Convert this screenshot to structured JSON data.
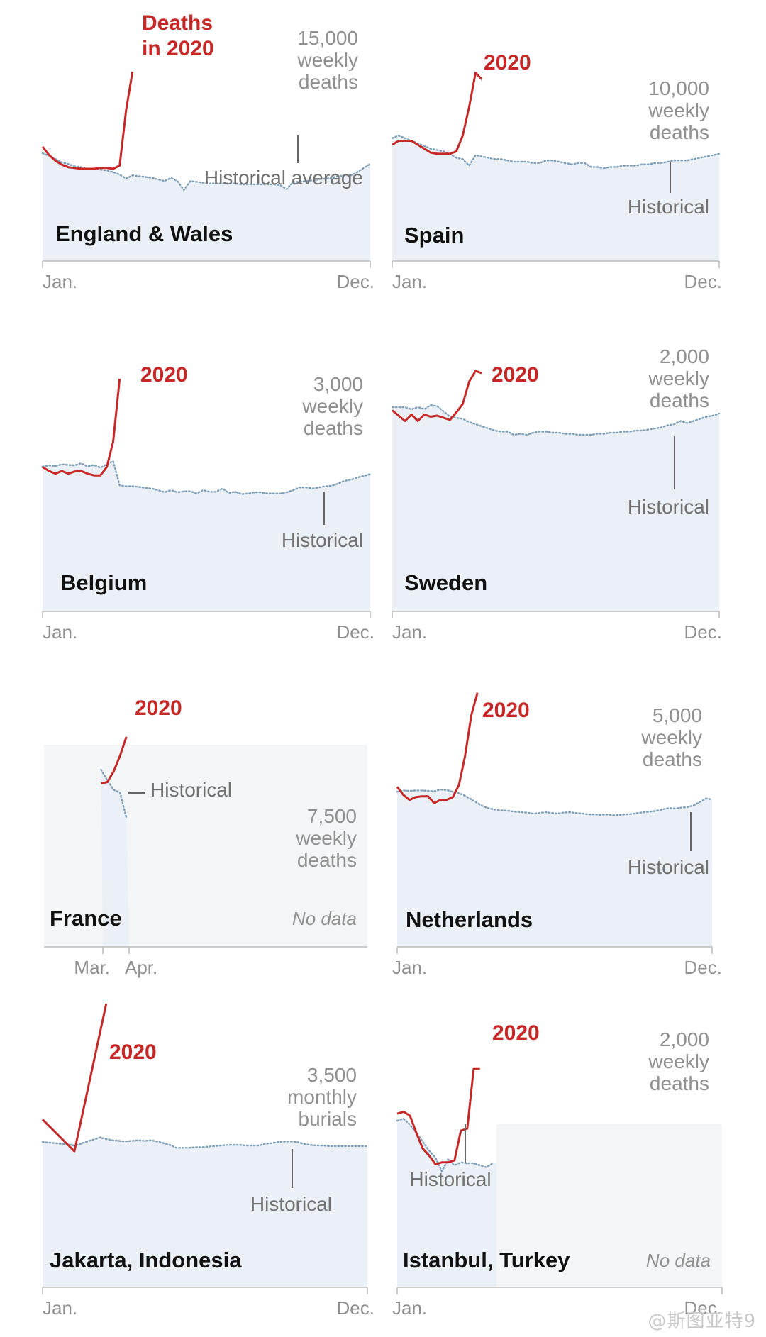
{
  "figure": {
    "watermark": "@斯图亚特9",
    "colors": {
      "deaths_2020": "#c62828",
      "historical": "#7f9fb6",
      "area_fill": "#eaf0f5",
      "no_data_fill": "#f4f5f6",
      "axis": "#bbbbbb",
      "label_grey": "#909090",
      "country_label": "#111111"
    }
  },
  "chart_data": [
    {
      "type": "line",
      "country": "England & Wales",
      "highlight_label": "Deaths\nin 2020",
      "y_label": "15,000\nweekly\ndeaths",
      "historical_label": "Historical average",
      "x_ticks": [
        "Jan.",
        "Dec."
      ],
      "x_range": [
        0,
        51
      ],
      "y_scale_value": 15000,
      "series": [
        {
          "name": "Deaths in 2020",
          "x": [
            0,
            1,
            2,
            3,
            4,
            5,
            6,
            7,
            8,
            9,
            10,
            11,
            12,
            13,
            14
          ],
          "y": [
            14000,
            13000,
            12300,
            11800,
            11500,
            11400,
            11300,
            11300,
            11300,
            11400,
            11400,
            11300,
            11700,
            18500,
            23200
          ]
        },
        {
          "name": "Historical average",
          "x": [
            0,
            1,
            2,
            3,
            4,
            5,
            6,
            7,
            8,
            9,
            10,
            11,
            12,
            13,
            14,
            15,
            16,
            17,
            18,
            19,
            20,
            21,
            22,
            23,
            24,
            25,
            26,
            27,
            28,
            29,
            30,
            31,
            32,
            33,
            34,
            35,
            36,
            37,
            38,
            39,
            40,
            41,
            42,
            43,
            44,
            45,
            46,
            47,
            48,
            49,
            50,
            51
          ],
          "y": [
            13200,
            12900,
            12500,
            12100,
            11900,
            11600,
            11500,
            11300,
            11300,
            11200,
            11100,
            10900,
            10600,
            10100,
            10500,
            10400,
            10300,
            10200,
            10000,
            9800,
            10200,
            9800,
            8700,
            9800,
            9700,
            9600,
            9500,
            9500,
            9500,
            9500,
            9500,
            9400,
            9400,
            9400,
            9400,
            9400,
            9400,
            9300,
            8800,
            9700,
            9700,
            9800,
            9900,
            10000,
            10100,
            10200,
            10400,
            10500,
            10500,
            10900,
            11400,
            11900
          ]
        }
      ]
    },
    {
      "type": "line",
      "country": "Spain",
      "highlight_label": "2020",
      "y_label": "10,000\nweekly\ndeaths",
      "historical_label": "Historical",
      "x_ticks": [
        "Jan.",
        "Dec."
      ],
      "x_range": [
        0,
        51
      ],
      "y_scale_value": 10000,
      "series": [
        {
          "name": "2020",
          "x": [
            0,
            1,
            2,
            3,
            4,
            5,
            6,
            7,
            8,
            9,
            10,
            11,
            12,
            13,
            14
          ],
          "y": [
            8900,
            9200,
            9200,
            9200,
            8900,
            8600,
            8300,
            8200,
            8200,
            8200,
            8400,
            9600,
            11800,
            14400,
            13900
          ]
        },
        {
          "name": "Historical",
          "x": [
            0,
            1,
            2,
            3,
            4,
            5,
            6,
            7,
            8,
            9,
            10,
            11,
            12,
            13,
            14,
            15,
            16,
            17,
            18,
            19,
            20,
            21,
            22,
            23,
            24,
            25,
            26,
            27,
            28,
            29,
            30,
            31,
            32,
            33,
            34,
            35,
            36,
            37,
            38,
            39,
            40,
            41,
            42,
            43,
            44,
            45,
            46,
            47,
            48,
            49,
            50,
            51
          ],
          "y": [
            9400,
            9600,
            9400,
            9200,
            9000,
            8800,
            8600,
            8500,
            8400,
            8200,
            7900,
            7800,
            7300,
            8100,
            8000,
            7900,
            7800,
            7800,
            7700,
            7600,
            7600,
            7600,
            7500,
            7500,
            7700,
            7700,
            7600,
            7500,
            7400,
            7500,
            7500,
            7200,
            7200,
            7100,
            7200,
            7200,
            7300,
            7300,
            7300,
            7400,
            7400,
            7500,
            7500,
            7600,
            7700,
            7700,
            7700,
            7800,
            7900,
            8000,
            8100,
            8200
          ]
        }
      ]
    },
    {
      "type": "line",
      "country": "Belgium",
      "highlight_label": "2020",
      "y_label": "3,000\nweekly\ndeaths",
      "historical_label": "Historical",
      "x_ticks": [
        "Jan.",
        "Dec."
      ],
      "x_range": [
        0,
        51
      ],
      "y_scale_value": 3000,
      "series": [
        {
          "name": "2020",
          "x": [
            0,
            1,
            2,
            3,
            4,
            5,
            6,
            7,
            8,
            9,
            10,
            11,
            12
          ],
          "y": [
            2630,
            2560,
            2510,
            2560,
            2510,
            2550,
            2560,
            2510,
            2480,
            2480,
            2630,
            3100,
            4240
          ]
        },
        {
          "name": "Historical",
          "x": [
            0,
            1,
            2,
            3,
            4,
            5,
            6,
            7,
            8,
            9,
            10,
            11,
            12,
            13,
            14,
            15,
            16,
            17,
            18,
            19,
            20,
            21,
            22,
            23,
            24,
            25,
            26,
            27,
            28,
            29,
            30,
            31,
            32,
            33,
            34,
            35,
            36,
            37,
            38,
            39,
            40,
            41,
            42,
            43,
            44,
            45,
            46,
            47,
            48,
            49,
            50,
            51
          ],
          "y": [
            2640,
            2660,
            2650,
            2680,
            2670,
            2660,
            2700,
            2640,
            2670,
            2620,
            2680,
            2740,
            2300,
            2280,
            2280,
            2270,
            2250,
            2240,
            2210,
            2170,
            2210,
            2170,
            2190,
            2190,
            2150,
            2210,
            2180,
            2180,
            2240,
            2160,
            2180,
            2140,
            2150,
            2170,
            2170,
            2150,
            2150,
            2150,
            2170,
            2210,
            2260,
            2260,
            2240,
            2260,
            2280,
            2290,
            2330,
            2380,
            2400,
            2440,
            2470,
            2500
          ]
        }
      ]
    },
    {
      "type": "line",
      "country": "Sweden",
      "highlight_label": "2020",
      "y_label": "2,000\nweekly\ndeaths",
      "historical_label": "Historical",
      "x_ticks": [
        "Jan.",
        "Dec."
      ],
      "x_range": [
        0,
        51
      ],
      "y_scale_value": 2000,
      "series": [
        {
          "name": "2020",
          "x": [
            0,
            1,
            2,
            3,
            4,
            5,
            6,
            7,
            8,
            9,
            10,
            11,
            12,
            13,
            14
          ],
          "y": [
            1890,
            1840,
            1790,
            1850,
            1790,
            1850,
            1830,
            1840,
            1820,
            1800,
            1870,
            1950,
            2160,
            2260,
            2240
          ]
        },
        {
          "name": "Historical",
          "x": [
            0,
            1,
            2,
            3,
            4,
            5,
            6,
            7,
            8,
            9,
            10,
            11,
            12,
            13,
            14,
            15,
            16,
            17,
            18,
            19,
            20,
            21,
            22,
            23,
            24,
            25,
            26,
            27,
            28,
            29,
            30,
            31,
            32,
            33,
            34,
            35,
            36,
            37,
            38,
            39,
            40,
            41,
            42,
            43,
            44,
            45,
            46,
            47,
            48,
            49,
            50,
            51
          ],
          "y": [
            1920,
            1920,
            1920,
            1900,
            1920,
            1900,
            1940,
            1930,
            1880,
            1830,
            1820,
            1810,
            1780,
            1760,
            1740,
            1720,
            1700,
            1690,
            1690,
            1660,
            1670,
            1660,
            1680,
            1690,
            1690,
            1680,
            1680,
            1670,
            1670,
            1660,
            1660,
            1660,
            1670,
            1670,
            1680,
            1680,
            1690,
            1690,
            1700,
            1700,
            1710,
            1720,
            1730,
            1750,
            1760,
            1790,
            1770,
            1790,
            1810,
            1830,
            1840,
            1860
          ]
        }
      ]
    },
    {
      "type": "line",
      "country": "France",
      "highlight_label": "2020",
      "y_label": "7,500\nweekly\ndeaths",
      "historical_label": "Historical",
      "no_data_label": "No data",
      "x_ticks": [
        "Mar.",
        "Apr."
      ],
      "x_range": [
        0,
        51
      ],
      "y_scale_value": 7500,
      "series": [
        {
          "name": "2020",
          "x": [
            9,
            10,
            11,
            12,
            13
          ],
          "y": [
            10500,
            10600,
            11300,
            12300,
            13500
          ]
        },
        {
          "name": "Historical",
          "x": [
            9,
            10,
            11,
            12,
            13
          ],
          "y": [
            11400,
            10700,
            10100,
            9900,
            8300
          ]
        }
      ]
    },
    {
      "type": "line",
      "country": "Netherlands",
      "highlight_label": "2020",
      "y_label": "5,000\nweekly\ndeaths",
      "historical_label": "Historical",
      "x_ticks": [
        "Jan.",
        "Dec."
      ],
      "x_range": [
        0,
        51
      ],
      "y_scale_value": 5000,
      "series": [
        {
          "name": "2020",
          "x": [
            0,
            1,
            2,
            3,
            4,
            5,
            6,
            7,
            8,
            9,
            10,
            11,
            12,
            13
          ],
          "y": [
            3540,
            3360,
            3250,
            3310,
            3330,
            3330,
            3180,
            3250,
            3250,
            3310,
            3580,
            4230,
            5120,
            5620
          ]
        },
        {
          "name": "Historical",
          "x": [
            0,
            1,
            2,
            3,
            4,
            5,
            6,
            7,
            8,
            9,
            10,
            11,
            12,
            13,
            14,
            15,
            16,
            17,
            18,
            19,
            20,
            21,
            22,
            23,
            24,
            25,
            26,
            27,
            28,
            29,
            30,
            31,
            32,
            33,
            34,
            35,
            36,
            37,
            38,
            39,
            40,
            41,
            42,
            43,
            44,
            45,
            46,
            47,
            48,
            49,
            50,
            51
          ],
          "y": [
            3430,
            3460,
            3450,
            3460,
            3460,
            3450,
            3440,
            3480,
            3470,
            3430,
            3400,
            3340,
            3260,
            3180,
            3100,
            3060,
            3030,
            3020,
            3010,
            2990,
            2980,
            2970,
            2950,
            2960,
            2980,
            2960,
            2950,
            2970,
            2980,
            2960,
            2950,
            2930,
            2930,
            2920,
            2930,
            2910,
            2920,
            2930,
            2940,
            2960,
            2980,
            2990,
            3010,
            3040,
            3070,
            3060,
            3080,
            3090,
            3130,
            3200,
            3280,
            3260
          ]
        }
      ]
    },
    {
      "type": "line",
      "country": "Jakarta, Indonesia",
      "highlight_label": "2020",
      "y_label": "3,500\nmonthly\nburials",
      "historical_label": "Historical",
      "x_ticks": [
        "Jan.",
        "Dec."
      ],
      "x_range": [
        0,
        51
      ],
      "y_scale_value": 3500,
      "series": [
        {
          "name": "2020",
          "x": [
            0,
            5,
            10
          ],
          "y": [
            2900,
            2350,
            4900
          ]
        },
        {
          "name": "Historical",
          "x": [
            0,
            1,
            2,
            3,
            4,
            5,
            6,
            7,
            8,
            9,
            10,
            11,
            12,
            13,
            14,
            15,
            16,
            17,
            18,
            19,
            20,
            21,
            22,
            23,
            24,
            25,
            26,
            27,
            28,
            29,
            30,
            31,
            32,
            33,
            34,
            35,
            36,
            37,
            38,
            39,
            40,
            41,
            42,
            43,
            44,
            45,
            46,
            47,
            48,
            49,
            50,
            51
          ],
          "y": [
            2510,
            2500,
            2490,
            2480,
            2470,
            2450,
            2480,
            2520,
            2550,
            2590,
            2560,
            2540,
            2530,
            2520,
            2530,
            2540,
            2530,
            2540,
            2520,
            2490,
            2460,
            2410,
            2410,
            2410,
            2420,
            2420,
            2430,
            2440,
            2450,
            2460,
            2460,
            2460,
            2450,
            2450,
            2450,
            2480,
            2490,
            2510,
            2520,
            2520,
            2510,
            2480,
            2460,
            2450,
            2450,
            2440,
            2440,
            2440,
            2440,
            2440,
            2440,
            2440
          ]
        }
      ]
    },
    {
      "type": "line",
      "country": "Istanbul, Turkey",
      "highlight_label": "2020",
      "y_label": "2,000\nweekly\ndeaths",
      "historical_label": "Historical",
      "no_data_label": "No data",
      "x_ticks": [
        "Jan.",
        "Dec."
      ],
      "x_range": [
        0,
        51
      ],
      "y_scale_value": 2000,
      "series": [
        {
          "name": "2020",
          "x": [
            0,
            1,
            2,
            3,
            4,
            5,
            6,
            7,
            8,
            9,
            10,
            11,
            12,
            13
          ],
          "y": [
            1750,
            1770,
            1730,
            1560,
            1400,
            1330,
            1240,
            1260,
            1260,
            1280,
            1580,
            1600,
            2200,
            2200
          ]
        },
        {
          "name": "Historical",
          "x": [
            0,
            1,
            2,
            3,
            4,
            5,
            6,
            7,
            8,
            9,
            10,
            11,
            12,
            13,
            14,
            15
          ],
          "y": [
            1680,
            1700,
            1640,
            1560,
            1470,
            1380,
            1310,
            1170,
            1290,
            1230,
            1260,
            1250,
            1250,
            1230,
            1210,
            1250
          ]
        }
      ]
    }
  ]
}
